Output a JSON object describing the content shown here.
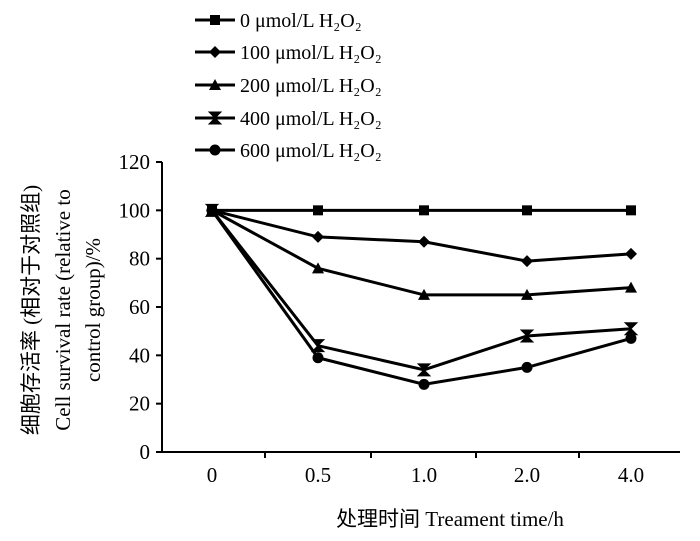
{
  "chart_data": {
    "type": "line",
    "x": [
      "0",
      "0.5",
      "1.0",
      "2.0",
      "4.0"
    ],
    "xlabel": "处理时间  Treament time/h",
    "ylabel_lines": [
      "细胞存活率 (相对于对照组)",
      "Cell survival rate (relative to",
      "control group)/%"
    ],
    "ylim": [
      0,
      120
    ],
    "yticks": [
      "0",
      "20",
      "40",
      "60",
      "80",
      "100",
      "120"
    ],
    "legend_position": "top-left",
    "grid": false,
    "series": [
      {
        "name": "0 μmol/L  H₂O₂",
        "marker": "square",
        "values": [
          100,
          100,
          100,
          100,
          100
        ]
      },
      {
        "name": "100 μmol/L H₂O₂",
        "marker": "diamond",
        "values": [
          100,
          89,
          87,
          79,
          82
        ]
      },
      {
        "name": "200 μmol/L H₂O₂",
        "marker": "triangle",
        "values": [
          100,
          76,
          65,
          65,
          68
        ]
      },
      {
        "name": "400 μmol/L H₂O₂",
        "marker": "bowtie",
        "values": [
          100,
          44,
          34,
          48,
          51
        ]
      },
      {
        "name": "600 μmol/L H₂O₂",
        "marker": "circle",
        "values": [
          100,
          39,
          28,
          35,
          47
        ]
      }
    ]
  }
}
